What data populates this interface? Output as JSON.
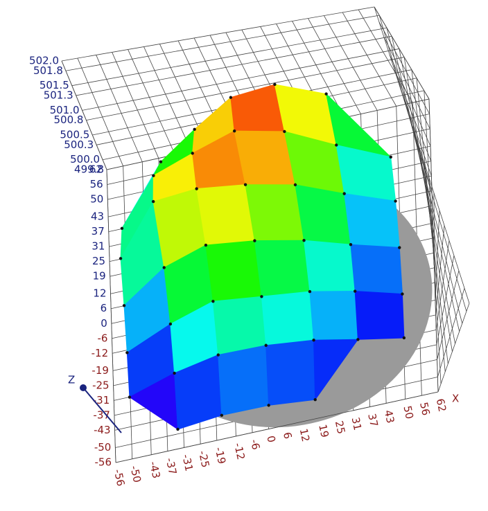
{
  "chart_data": {
    "type": "surface",
    "x_label": "X",
    "z_label": "Z",
    "xlim": [
      -56,
      62
    ],
    "ylim": [
      -56,
      62
    ],
    "zlim": [
      499.8,
      502.0
    ],
    "xticks": [
      -56,
      -50,
      -43,
      -37,
      -31,
      -25,
      -19,
      -12,
      -6,
      0,
      6,
      12,
      19,
      25,
      31,
      37,
      43,
      50,
      56,
      62
    ],
    "yticks": [
      -56,
      -50,
      -43,
      -37,
      -31,
      -25,
      -19,
      -12,
      -6,
      0,
      6,
      12,
      19,
      25,
      31,
      37,
      43,
      50,
      56,
      62
    ],
    "zticks": [
      {
        "value": 499.8,
        "label": "499.8"
      },
      {
        "value": 500.0,
        "label": "500.0"
      },
      {
        "value": 500.3,
        "label": "500.3"
      },
      {
        "value": 500.5,
        "label": "500.5"
      },
      {
        "value": 500.8,
        "label": "500.8"
      },
      {
        "value": 501.0,
        "label": "501.0"
      },
      {
        "value": 501.3,
        "label": "501.3"
      },
      {
        "value": 501.5,
        "label": "501.5"
      },
      {
        "value": 501.8,
        "label": "501.8"
      },
      {
        "value": 502.0,
        "label": "502.0"
      }
    ],
    "grid": true,
    "colormap": "rainbow",
    "x": [
      -50,
      -33,
      -17,
      0,
      17,
      33,
      50
    ],
    "y": [
      -50,
      -33,
      -17,
      0,
      17,
      33,
      50
    ],
    "z": [
      [
        null,
        499.9,
        500.0,
        500.0,
        499.9,
        null,
        null
      ],
      [
        499.9,
        500.2,
        500.4,
        500.4,
        500.3,
        500.1,
        499.9
      ],
      [
        500.0,
        500.4,
        500.7,
        500.6,
        500.5,
        500.3,
        500.0
      ],
      [
        500.1,
        500.7,
        501.0,
        500.9,
        500.7,
        500.4,
        500.1
      ],
      [
        500.2,
        501.2,
        501.3,
        501.2,
        501.0,
        500.6,
        500.2
      ],
      [
        500.0,
        500.9,
        501.2,
        501.5,
        501.3,
        500.8,
        500.3
      ],
      [
        null,
        500.3,
        500.8,
        501.3,
        501.4,
        501.0,
        null
      ]
    ]
  }
}
